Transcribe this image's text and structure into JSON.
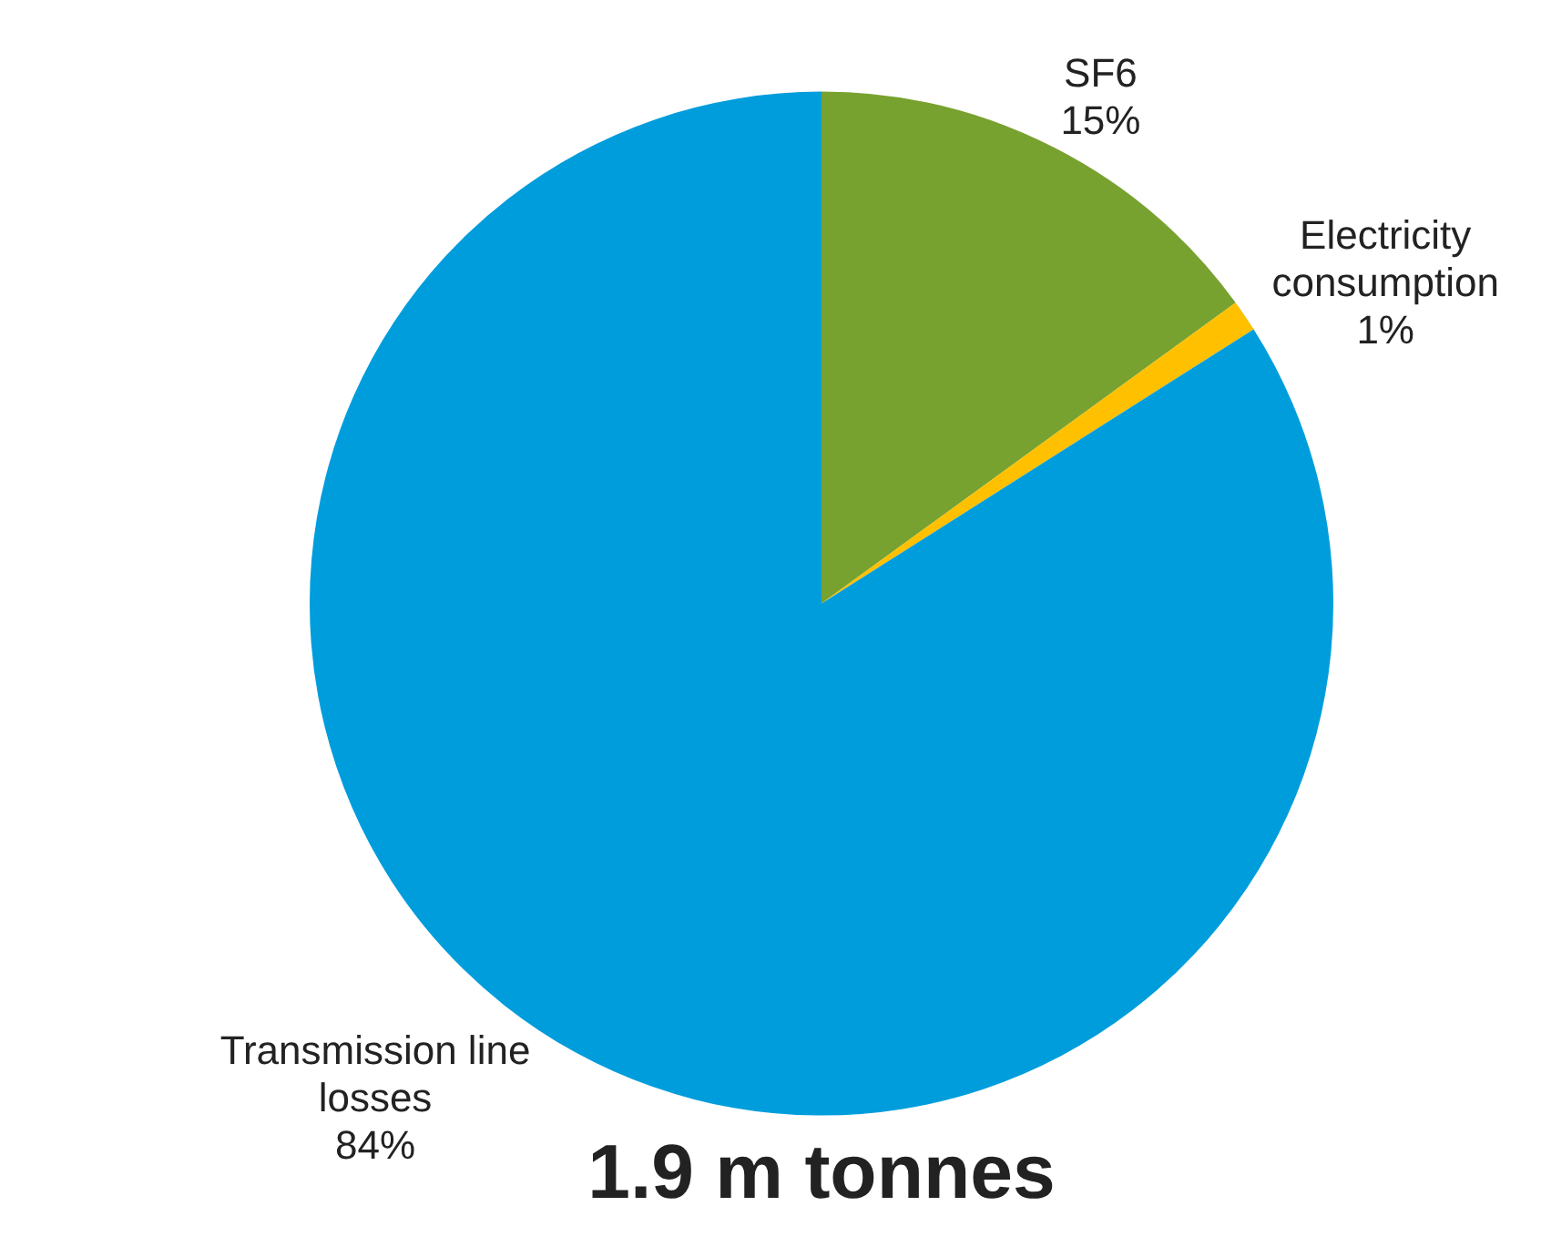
{
  "chart_data": {
    "type": "pie",
    "title": "1.9 m tonnes",
    "categories": [
      "SF6",
      "Electricity consumption",
      "Transmission line losses"
    ],
    "values": [
      15,
      1,
      84
    ],
    "colors": [
      "#78a22f",
      "#ffc000",
      "#009ddc"
    ],
    "value_labels": [
      "15%",
      "1%",
      "84%"
    ],
    "legend": false
  }
}
